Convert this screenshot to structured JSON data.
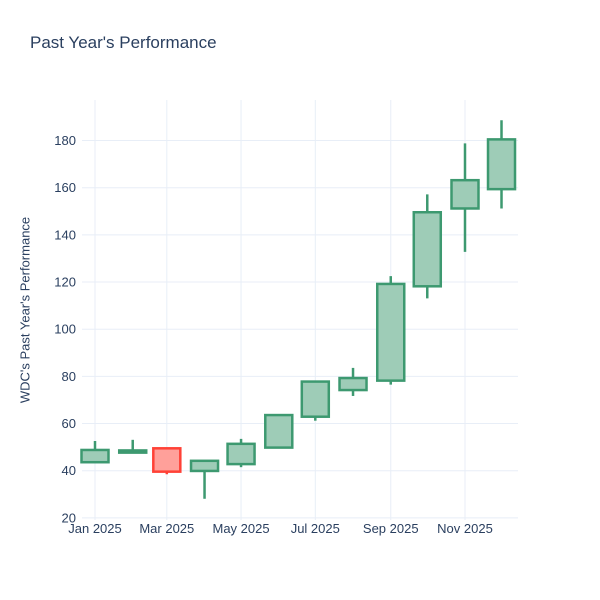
{
  "chart_data": {
    "type": "candlestick",
    "title": "Past Year's Performance",
    "ylabel": "WDC's Past Year's Performance",
    "xlabel": "",
    "legend": "none",
    "grid": true,
    "ylim": [
      19.1,
      197.2
    ],
    "x_range_days": [
      -10.7,
      347.5
    ],
    "y_ticks": [
      20,
      40,
      60,
      80,
      100,
      120,
      140,
      160,
      180
    ],
    "x_ticks": [
      {
        "label": "Jan 2025",
        "day_offset": 0
      },
      {
        "label": "Mar 2025",
        "day_offset": 59
      },
      {
        "label": "May 2025",
        "day_offset": 120
      },
      {
        "label": "Jul 2025",
        "day_offset": 181
      },
      {
        "label": "Sep 2025",
        "day_offset": 243
      },
      {
        "label": "Nov 2025",
        "day_offset": 304
      }
    ],
    "series": [
      {
        "month": "Jan 2025",
        "day_offset": 0,
        "open": 43.6,
        "high": 52.6,
        "low": 43.6,
        "close": 48.8
      },
      {
        "month": "Feb 2025",
        "day_offset": 31,
        "open": 48.0,
        "high": 53.1,
        "low": 48.0,
        "close": 48.6
      },
      {
        "month": "Mar 2025",
        "day_offset": 59,
        "open": 49.5,
        "high": 49.5,
        "low": 38.5,
        "close": 39.6
      },
      {
        "month": "Apr 2025",
        "day_offset": 90,
        "open": 39.9,
        "high": 44.2,
        "low": 28.1,
        "close": 44.2
      },
      {
        "month": "May 2025",
        "day_offset": 120,
        "open": 42.8,
        "high": 53.5,
        "low": 41.5,
        "close": 51.4
      },
      {
        "month": "Jun 2025",
        "day_offset": 151,
        "open": 49.8,
        "high": 63.6,
        "low": 49.8,
        "close": 63.6
      },
      {
        "month": "Jul 2025",
        "day_offset": 181,
        "open": 62.9,
        "high": 77.8,
        "low": 61.2,
        "close": 77.8
      },
      {
        "month": "Aug 2025",
        "day_offset": 212,
        "open": 74.2,
        "high": 83.6,
        "low": 71.7,
        "close": 79.3
      },
      {
        "month": "Sep 2025",
        "day_offset": 243,
        "open": 78.2,
        "high": 122.5,
        "low": 76.5,
        "close": 119.2
      },
      {
        "month": "Oct 2025",
        "day_offset": 273,
        "open": 118.2,
        "high": 157.2,
        "low": 113.1,
        "close": 149.6
      },
      {
        "month": "Nov 2025",
        "day_offset": 304,
        "open": 151.2,
        "high": 178.8,
        "low": 132.8,
        "close": 163.2
      },
      {
        "month": "Dec 2025",
        "day_offset": 334,
        "open": 159.4,
        "high": 188.6,
        "low": 151.2,
        "close": 180.5
      }
    ],
    "colors": {
      "increasing_line": "#3D9970",
      "increasing_fill": "#9ECCB7",
      "decreasing_line": "#FF4136",
      "decreasing_fill": "#FFA09A",
      "grid": "#E8EEF7",
      "text": "#2A3F5F",
      "background": "#FFFFFF"
    }
  }
}
